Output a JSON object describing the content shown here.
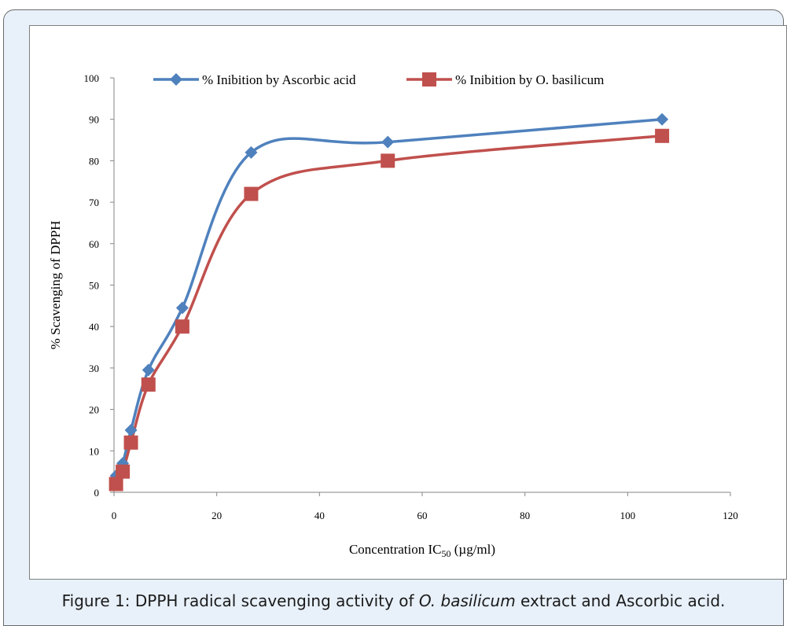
{
  "chart_data": {
    "type": "line",
    "title": "",
    "xlabel": "Concentration IC",
    "xlabel_sub": "50",
    "xlabel_unit": " (µg/ml)",
    "ylabel": "% Scavenging of DPPH",
    "xlim": [
      0,
      120
    ],
    "ylim": [
      0,
      100
    ],
    "x_ticks": [
      0,
      20,
      40,
      60,
      80,
      100,
      120
    ],
    "y_ticks": [
      0,
      10,
      20,
      30,
      40,
      50,
      60,
      70,
      80,
      90,
      100
    ],
    "grid": false,
    "legend_position": "top",
    "series": [
      {
        "name": "% Inibition by Ascorbic acid",
        "marker": "diamond",
        "color": "#4f81bd",
        "x": [
          0.4,
          1.7,
          3.3,
          6.7,
          13.3,
          26.7,
          53.3,
          106.7
        ],
        "y": [
          4,
          7,
          15,
          29.5,
          44.5,
          82,
          84.5,
          90
        ]
      },
      {
        "name": "% Inibition by O. basilicum",
        "marker": "square",
        "color": "#c0504d",
        "x": [
          0.4,
          1.7,
          3.3,
          6.7,
          13.3,
          26.7,
          53.3,
          106.7
        ],
        "y": [
          2,
          5,
          12,
          26,
          40,
          72,
          80,
          86
        ]
      }
    ]
  },
  "caption": {
    "prefix": "Figure 1: DPPH radical scavenging activity of ",
    "italic": "O. basilicum",
    "suffix": " extract and Ascorbic acid."
  }
}
